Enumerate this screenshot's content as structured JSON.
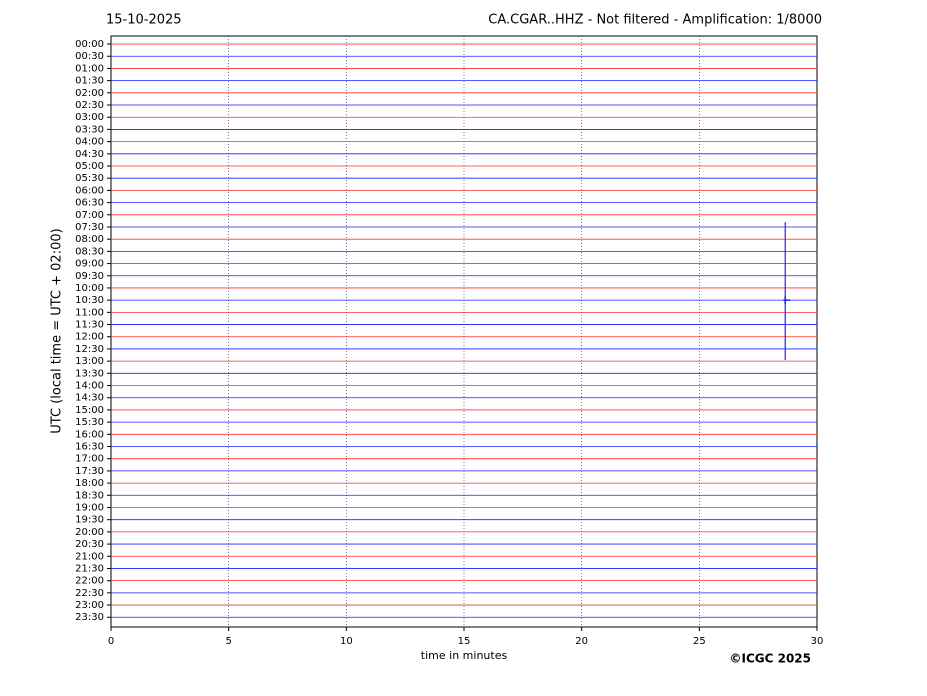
{
  "chart_data": {
    "type": "helicorder",
    "date": "15-10-2025",
    "title": "CA.CGAR..HHZ - Not filtered - Amplification: 1/8000",
    "y_label": "UTC (local time = UTC + 02:00)",
    "x_label": "time in minutes",
    "copyright": "©ICGC 2025",
    "xlim": [
      0,
      30
    ],
    "xticks": [
      0,
      5,
      10,
      15,
      20,
      25,
      30
    ],
    "ylim": [
      -0.33,
      23.9
    ],
    "y_inverted": true,
    "trace_colors": [
      "#ff3030",
      "#2020ff"
    ],
    "yticks": [
      {
        "value": 0,
        "label": "00:00"
      },
      {
        "value": 0.5,
        "label": "00:30"
      },
      {
        "value": 1,
        "label": "01:00"
      },
      {
        "value": 1.5,
        "label": "01:30"
      },
      {
        "value": 2,
        "label": "02:00"
      },
      {
        "value": 2.5,
        "label": "02:30"
      },
      {
        "value": 3,
        "label": "03:00"
      },
      {
        "value": 3.5,
        "label": "03:30"
      },
      {
        "value": 4,
        "label": "04:00"
      },
      {
        "value": 4.5,
        "label": "04:30"
      },
      {
        "value": 5,
        "label": "05:00"
      },
      {
        "value": 5.5,
        "label": "05:30"
      },
      {
        "value": 6,
        "label": "06:00"
      },
      {
        "value": 6.5,
        "label": "06:30"
      },
      {
        "value": 7,
        "label": "07:00"
      },
      {
        "value": 7.5,
        "label": "07:30"
      },
      {
        "value": 8,
        "label": "08:00"
      },
      {
        "value": 8.5,
        "label": "08:30"
      },
      {
        "value": 9,
        "label": "09:00"
      },
      {
        "value": 9.5,
        "label": "09:30"
      },
      {
        "value": 10,
        "label": "10:00"
      },
      {
        "value": 10.5,
        "label": "10:30"
      },
      {
        "value": 11,
        "label": "11:00"
      },
      {
        "value": 11.5,
        "label": "11:30"
      },
      {
        "value": 12,
        "label": "12:00"
      },
      {
        "value": 12.5,
        "label": "12:30"
      },
      {
        "value": 13,
        "label": "13:00"
      },
      {
        "value": 13.5,
        "label": "13:30"
      },
      {
        "value": 14,
        "label": "14:00"
      },
      {
        "value": 14.5,
        "label": "14:30"
      },
      {
        "value": 15,
        "label": "15:00"
      },
      {
        "value": 15.5,
        "label": "15:30"
      },
      {
        "value": 16,
        "label": "16:00"
      },
      {
        "value": 16.5,
        "label": "16:30"
      },
      {
        "value": 17,
        "label": "17:00"
      },
      {
        "value": 17.5,
        "label": "17:30"
      },
      {
        "value": 18,
        "label": "18:00"
      },
      {
        "value": 18.5,
        "label": "18:30"
      },
      {
        "value": 19,
        "label": "19:00"
      },
      {
        "value": 19.5,
        "label": "19:30"
      },
      {
        "value": 20,
        "label": "20:00"
      },
      {
        "value": 20.5,
        "label": "20:30"
      },
      {
        "value": 21,
        "label": "21:00"
      },
      {
        "value": 21.5,
        "label": "21:30"
      },
      {
        "value": 22,
        "label": "22:00"
      },
      {
        "value": 22.5,
        "label": "22:30"
      },
      {
        "value": 23,
        "label": "23:00"
      },
      {
        "value": 23.5,
        "label": "23:30"
      }
    ],
    "event": {
      "x": [
        28.65,
        28.65,
        28.65
      ],
      "y": [
        7.3,
        10.5,
        12.96
      ]
    }
  }
}
